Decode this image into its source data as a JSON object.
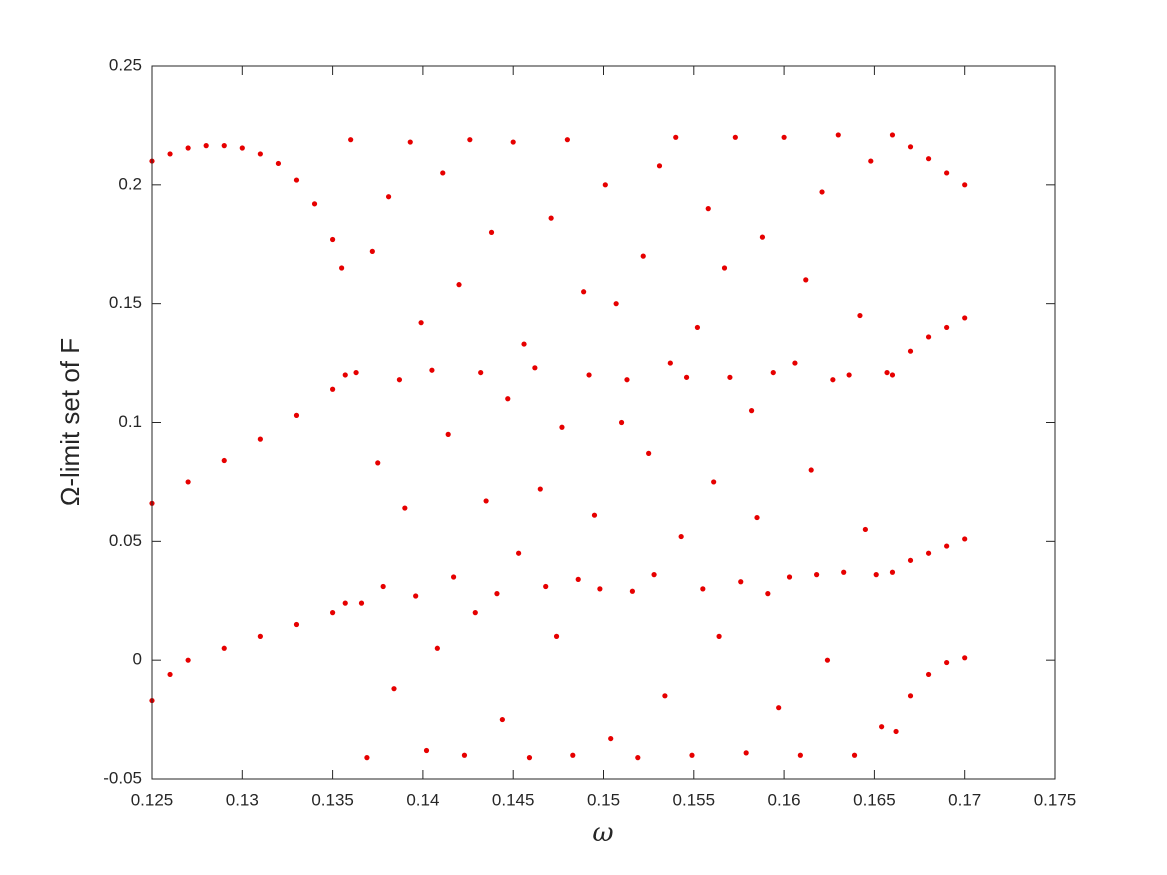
{
  "chart_data": {
    "type": "scatter",
    "xlabel": "ω",
    "ylabel": "Ω-limit set of F",
    "color": "#e60000",
    "xlim": [
      0.125,
      0.175
    ],
    "ylim": [
      -0.05,
      0.25
    ],
    "xticks": [
      0.125,
      0.13,
      0.135,
      0.14,
      0.145,
      0.15,
      0.155,
      0.16,
      0.165,
      0.17,
      0.175
    ],
    "yticks": [
      -0.05,
      0,
      0.05,
      0.1,
      0.15,
      0.2,
      0.25
    ],
    "x": [
      0.125,
      0.126,
      0.127,
      0.128,
      0.129,
      0.13,
      0.131,
      0.132,
      0.133,
      0.134,
      0.135,
      0.1355,
      0.125,
      0.127,
      0.129,
      0.131,
      0.133,
      0.135,
      0.1357,
      0.125,
      0.126,
      0.127,
      0.129,
      0.131,
      0.133,
      0.135,
      0.1357,
      0.166,
      0.167,
      0.168,
      0.169,
      0.17,
      0.166,
      0.167,
      0.168,
      0.169,
      0.17,
      0.166,
      0.167,
      0.168,
      0.169,
      0.17,
      0.1662,
      0.167,
      0.168,
      0.169,
      0.17,
      0.136,
      0.1363,
      0.1366,
      0.1369,
      0.1372,
      0.1375,
      0.1378,
      0.1381,
      0.1384,
      0.1387,
      0.139,
      0.1393,
      0.1396,
      0.1399,
      0.1402,
      0.1405,
      0.1408,
      0.1411,
      0.1414,
      0.1417,
      0.142,
      0.1423,
      0.1426,
      0.1429,
      0.1432,
      0.1435,
      0.1438,
      0.1441,
      0.1444,
      0.1447,
      0.145,
      0.1453,
      0.1456,
      0.1459,
      0.1462,
      0.1465,
      0.1468,
      0.1471,
      0.1474,
      0.1477,
      0.148,
      0.1483,
      0.1486,
      0.1489,
      0.1492,
      0.1495,
      0.1498,
      0.1501,
      0.1504,
      0.1507,
      0.151,
      0.1513,
      0.1516,
      0.1519,
      0.1522,
      0.1525,
      0.1528,
      0.1531,
      0.1534,
      0.1537,
      0.154,
      0.1543,
      0.1546,
      0.1549,
      0.1552,
      0.1555,
      0.1558,
      0.1561,
      0.1564,
      0.1567,
      0.157,
      0.1573,
      0.1576,
      0.1579,
      0.1582,
      0.1585,
      0.1588,
      0.1591,
      0.1594,
      0.1597,
      0.16,
      0.1603,
      0.1606,
      0.1609,
      0.1612,
      0.1615,
      0.1618,
      0.1621,
      0.1624,
      0.1627,
      0.163,
      0.1633,
      0.1636,
      0.1639,
      0.1642,
      0.1645,
      0.1648,
      0.1651,
      0.1654,
      0.1657
    ],
    "values": [
      0.21,
      0.213,
      0.2155,
      0.2165,
      0.2165,
      0.2155,
      0.213,
      0.209,
      0.202,
      0.192,
      0.177,
      0.165,
      0.066,
      0.075,
      0.084,
      0.093,
      0.103,
      0.114,
      0.12,
      -0.017,
      -0.006,
      0,
      0.005,
      0.01,
      0.015,
      0.02,
      0.024,
      0.221,
      0.216,
      0.211,
      0.205,
      0.2,
      0.12,
      0.13,
      0.136,
      0.14,
      0.144,
      0.037,
      0.042,
      0.045,
      0.048,
      0.051,
      -0.03,
      -0.015,
      -0.006,
      -0.001,
      0.001,
      0.219,
      0.121,
      0.024,
      -0.041,
      0.172,
      0.083,
      0.031,
      0.195,
      -0.012,
      0.118,
      0.064,
      0.218,
      0.027,
      0.142,
      -0.038,
      0.122,
      0.005,
      0.205,
      0.095,
      0.035,
      0.158,
      -0.04,
      0.219,
      0.02,
      0.121,
      0.067,
      0.18,
      0.028,
      -0.025,
      0.11,
      0.218,
      0.045,
      0.133,
      -0.041,
      0.123,
      0.072,
      0.031,
      0.186,
      0.01,
      0.098,
      0.219,
      -0.04,
      0.034,
      0.155,
      0.12,
      0.061,
      0.03,
      0.2,
      -0.033,
      0.15,
      0.1,
      0.118,
      0.029,
      -0.041,
      0.17,
      0.087,
      0.036,
      0.208,
      -0.015,
      0.125,
      0.22,
      0.052,
      0.119,
      -0.04,
      0.14,
      0.03,
      0.19,
      0.075,
      0.01,
      0.165,
      0.119,
      0.22,
      0.033,
      -0.039,
      0.105,
      0.06,
      0.178,
      0.028,
      0.121,
      -0.02,
      0.22,
      0.035,
      0.125,
      -0.04,
      0.16,
      0.08,
      0.036,
      0.197,
      0,
      0.118,
      0.221,
      0.037,
      0.12,
      -0.04,
      0.145,
      0.055,
      0.21,
      0.036,
      -0.028,
      0.121
    ]
  }
}
